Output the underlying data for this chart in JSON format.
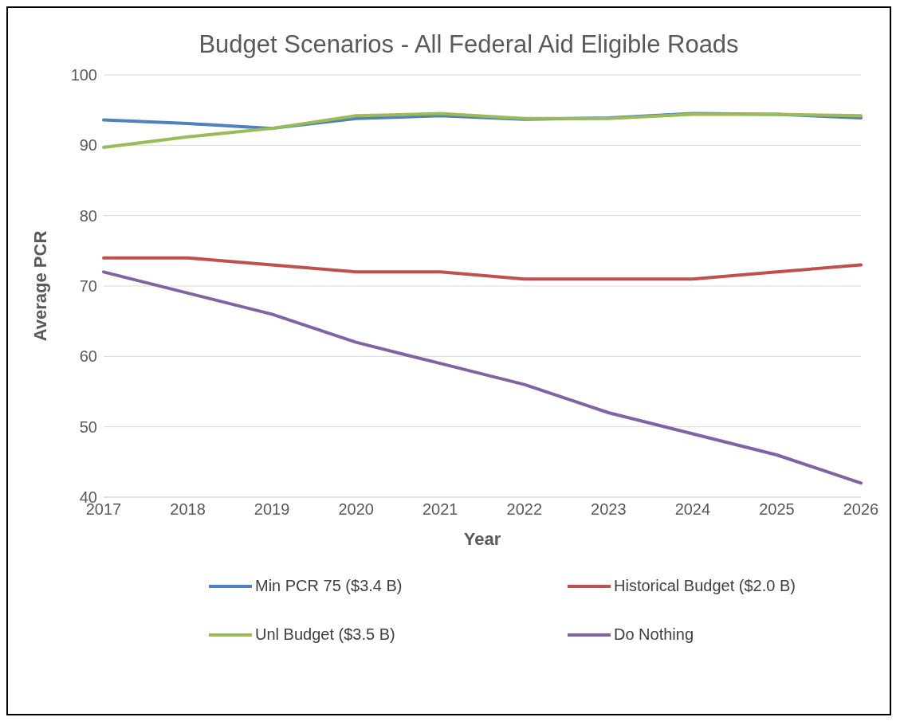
{
  "chart_data": {
    "type": "line",
    "title": "Budget Scenarios - All Federal Aid Eligible Roads",
    "xlabel": "Year",
    "ylabel": "Average PCR",
    "categories": [
      "2017",
      "2018",
      "2019",
      "2020",
      "2021",
      "2022",
      "2023",
      "2024",
      "2025",
      "2026"
    ],
    "series": [
      {
        "name": "Min PCR 75 ($3.4 B)",
        "color": "#4f81bd",
        "values": [
          93.6,
          93.1,
          92.4,
          93.8,
          94.2,
          93.7,
          93.9,
          94.5,
          94.4,
          93.9
        ]
      },
      {
        "name": "Historical Budget ($2.0 B)",
        "color": "#c0504d",
        "values": [
          74,
          74,
          73,
          72,
          72,
          71,
          71,
          71,
          72,
          73
        ]
      },
      {
        "name": "Unl Budget ($3.5 B)",
        "color": "#9bbb59",
        "values": [
          89.7,
          91.2,
          92.4,
          94.2,
          94.5,
          93.8,
          93.8,
          94.4,
          94.4,
          94.2
        ]
      },
      {
        "name": "Do Nothing",
        "color": "#8064a2",
        "values": [
          72,
          69,
          66,
          62,
          59,
          56,
          52,
          49,
          46,
          42
        ]
      }
    ],
    "ylim": [
      40,
      100
    ],
    "yticks": [
      40,
      50,
      60,
      70,
      80,
      90,
      100
    ],
    "grid": "y",
    "legend": "bottom",
    "marker": "none",
    "line_style": "solid"
  }
}
